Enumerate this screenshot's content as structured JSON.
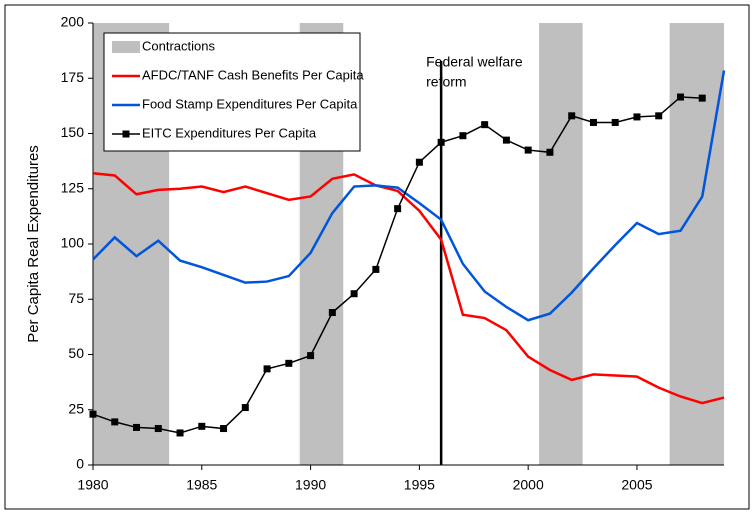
{
  "chart_data": {
    "type": "line",
    "y_label": "Per Capita Real Expenditures",
    "annotation": [
      "Federal welfare",
      "reform"
    ],
    "annotation_x": 1996,
    "x": [
      1980,
      1981,
      1982,
      1983,
      1984,
      1985,
      1986,
      1987,
      1988,
      1989,
      1990,
      1991,
      1992,
      1993,
      1994,
      1995,
      1996,
      1997,
      1998,
      1999,
      2000,
      2001,
      2002,
      2003,
      2004,
      2005,
      2006,
      2007,
      2008,
      2009
    ],
    "xlim": [
      1980,
      2009
    ],
    "xticks": [
      1980,
      1985,
      1990,
      1995,
      2000,
      2005
    ],
    "ylim": [
      0,
      200
    ],
    "yticks": [
      0,
      25,
      50,
      75,
      100,
      125,
      150,
      175,
      200
    ],
    "shading": {
      "name": "Contractions",
      "color": "#bfbfbf",
      "ranges": [
        [
          1980,
          1983.5
        ],
        [
          1989.5,
          1991.5
        ],
        [
          2000.5,
          2002.5
        ],
        [
          2006.5,
          2009
        ]
      ]
    },
    "series": [
      {
        "name": "AFDC/TANF Cash Benefits Per Capita",
        "color": "#ff0000",
        "marker": false,
        "values": [
          132,
          131,
          122.5,
          124.5,
          125,
          126,
          123.5,
          126,
          123,
          120,
          121.5,
          129.5,
          131.5,
          126.5,
          124,
          115,
          102,
          68,
          66.5,
          61,
          49,
          43,
          38.5,
          41,
          40.5,
          40,
          35,
          31,
          28,
          30.5
        ]
      },
      {
        "name": "Food Stamp Expenditures Per Capita",
        "color": "#0055dd",
        "marker": false,
        "values": [
          93,
          103,
          94.5,
          101.5,
          92.5,
          89.5,
          86,
          82.5,
          83,
          85.5,
          96,
          114,
          126,
          126.5,
          125.5,
          118.5,
          111,
          91,
          78.5,
          71.5,
          65.5,
          68.5,
          78,
          89,
          99.5,
          109.5,
          104.5,
          106,
          121.5,
          178.5
        ]
      },
      {
        "name": "EITC Expenditures Per Capita",
        "color": "#000000",
        "marker": true,
        "values": [
          23,
          19.5,
          17,
          16.5,
          14.5,
          17.5,
          16.5,
          26,
          43.5,
          46,
          49.5,
          69,
          77.5,
          88.5,
          116,
          137,
          146,
          149,
          154,
          147,
          142.5,
          141.5,
          158,
          155,
          155,
          157.5,
          158,
          166.5,
          166,
          null
        ]
      }
    ]
  }
}
